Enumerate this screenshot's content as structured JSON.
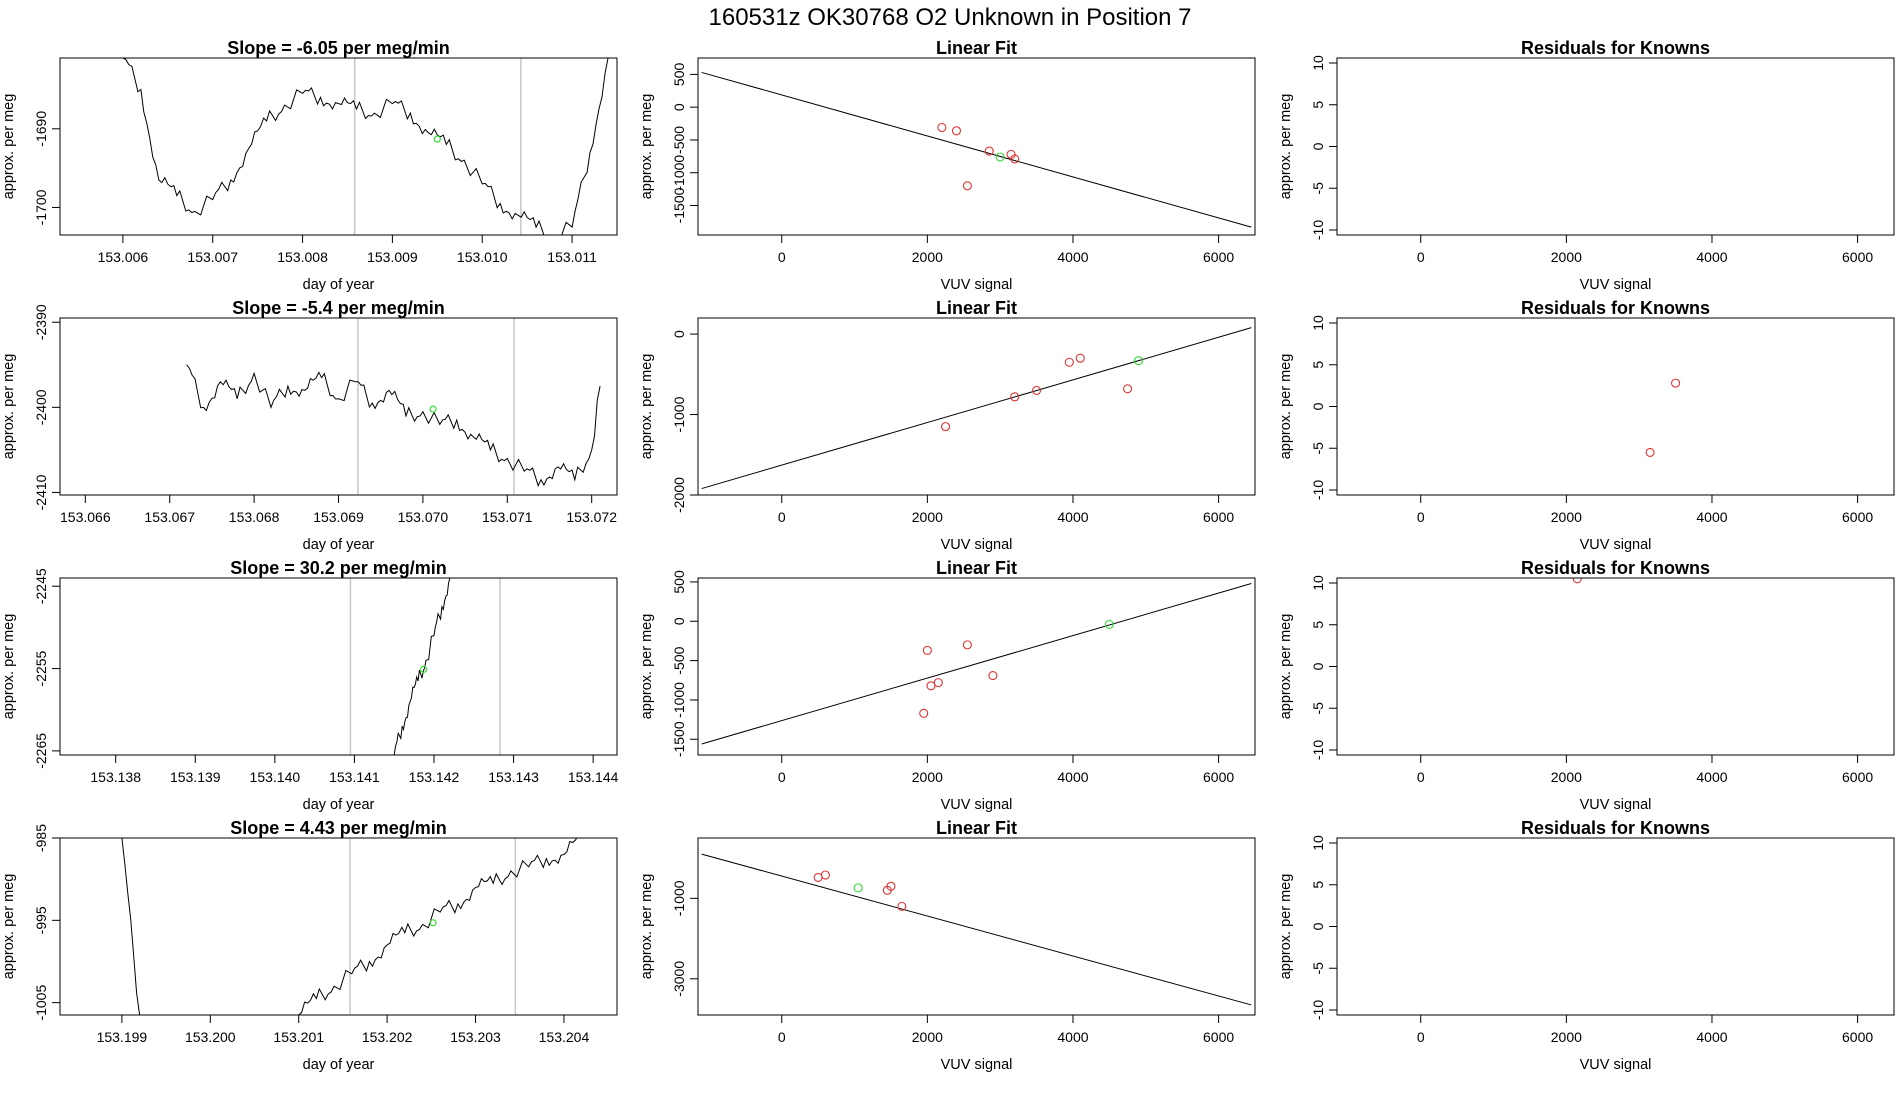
{
  "main_title": "160531z      OK30768    O2 Unknown in Position  7",
  "chart_data": [
    {
      "type": "line",
      "row": 1,
      "col": 1,
      "title": "Slope =  -6.05  per meg/min",
      "xlabel": "day of year",
      "ylabel": "approx. per meg",
      "xlim": [
        153.0053,
        153.0115
      ],
      "ylim": [
        -1703.5,
        -1681.0
      ],
      "xticks": [
        "153.006",
        "153.007",
        "153.008",
        "153.009",
        "153.010",
        "153.011"
      ],
      "yticks": [
        "-1700",
        "-1690"
      ],
      "vlines": [
        153.00858,
        153.01043
      ],
      "highlight": {
        "x": 153.0095,
        "y": -1691.3
      },
      "series": [
        {
          "name": "trace",
          "x": [
            153.006,
            153.0062,
            153.0064,
            153.0066,
            153.0068,
            153.007,
            153.0072,
            153.0074,
            153.0076,
            153.0078,
            153.008,
            153.0082,
            153.0084,
            153.0086,
            153.0088,
            153.009,
            153.0092,
            153.0094,
            153.0096,
            153.0098,
            153.01,
            153.0102,
            153.0104,
            153.0106,
            153.0108,
            153.011,
            153.0112,
            153.0114
          ],
          "y": [
            -1681.0,
            -1685.0,
            -1696.5,
            -1698.5,
            -1700.5,
            -1699.0,
            -1696.5,
            -1692.5,
            -1689.0,
            -1687.0,
            -1685.5,
            -1686.0,
            -1686.8,
            -1687.5,
            -1688.0,
            -1686.8,
            -1688.0,
            -1690.5,
            -1692.0,
            -1694.0,
            -1697.0,
            -1699.5,
            -1701.0,
            -1702.5,
            -1703.5,
            -1702.5,
            -1693.0,
            -1681.0
          ]
        }
      ]
    },
    {
      "type": "scatter",
      "row": 1,
      "col": 2,
      "title": "Linear Fit",
      "xlabel": "VUV signal",
      "ylabel": "approx. per meg",
      "xlim": [
        -1150,
        6500
      ],
      "ylim": [
        -1950,
        750
      ],
      "xticks": [
        0,
        2000,
        4000,
        6000
      ],
      "yticks": [
        -1500,
        -1000,
        -500,
        0,
        500
      ],
      "fit_line": [
        [
          -1100,
          530
        ],
        [
          6450,
          -1830
        ]
      ],
      "points_red": [
        [
          2200,
          -310
        ],
        [
          2400,
          -360
        ],
        [
          2850,
          -670
        ],
        [
          3150,
          -720
        ],
        [
          3200,
          -790
        ],
        [
          2550,
          -1200
        ]
      ],
      "points_green": [
        [
          3000,
          -760
        ]
      ]
    },
    {
      "type": "scatter",
      "row": 1,
      "col": 3,
      "title": "Residuals for Knowns",
      "xlabel": "VUV signal",
      "ylabel": "approx. per meg",
      "xlim": [
        -1150,
        6500
      ],
      "ylim": [
        -10.6,
        10.6
      ],
      "xticks": [
        0,
        2000,
        4000,
        6000
      ],
      "yticks": [
        -10,
        -5,
        0,
        5,
        10
      ],
      "points_red": []
    },
    {
      "type": "line",
      "row": 2,
      "col": 1,
      "title": "Slope =  -5.4  per meg/min",
      "xlabel": "day of year",
      "ylabel": "approx. per meg",
      "xlim": [
        153.0657,
        153.0723
      ],
      "ylim": [
        -2410.3,
        -2389.5
      ],
      "xticks": [
        "153.066",
        "153.067",
        "153.068",
        "153.069",
        "153.070",
        "153.071",
        "153.072"
      ],
      "yticks": [
        "-2410",
        "-2400",
        "-2390"
      ],
      "vlines": [
        153.06923,
        153.07108
      ],
      "highlight": {
        "x": 153.07012,
        "y": -2400.2
      },
      "series": [
        {
          "name": "trace",
          "x": [
            153.0672,
            153.0674,
            153.0676,
            153.0678,
            153.068,
            153.0682,
            153.0684,
            153.0686,
            153.0688,
            153.069,
            153.0692,
            153.0694,
            153.0696,
            153.0698,
            153.07,
            153.0702,
            153.0704,
            153.0706,
            153.0708,
            153.071,
            153.0712,
            153.0714,
            153.0716,
            153.0718,
            153.072,
            153.0721
          ],
          "y": [
            -2395.0,
            -2400.0,
            -2397.0,
            -2399.0,
            -2396.0,
            -2400.0,
            -2397.5,
            -2398.0,
            -2396.5,
            -2399.0,
            -2397.0,
            -2399.5,
            -2398.0,
            -2401.0,
            -2400.5,
            -2402.0,
            -2401.5,
            -2403.5,
            -2405.0,
            -2406.0,
            -2407.5,
            -2408.5,
            -2407.0,
            -2408.5,
            -2405.0,
            -2397.5
          ]
        }
      ]
    },
    {
      "type": "scatter",
      "row": 2,
      "col": 2,
      "title": "Linear Fit",
      "xlabel": "VUV signal",
      "ylabel": "approx. per meg",
      "xlim": [
        -1150,
        6500
      ],
      "ylim": [
        -2000,
        200
      ],
      "xticks": [
        0,
        2000,
        4000,
        6000
      ],
      "yticks": [
        -2000,
        -1000,
        0
      ],
      "fit_line": [
        [
          -1100,
          -1920
        ],
        [
          6450,
          80
        ]
      ],
      "points_red": [
        [
          2250,
          -1150
        ],
        [
          3200,
          -780
        ],
        [
          3500,
          -700
        ],
        [
          3950,
          -350
        ],
        [
          4100,
          -300
        ],
        [
          4750,
          -680
        ]
      ],
      "points_green": [
        [
          4900,
          -330
        ]
      ]
    },
    {
      "type": "scatter",
      "row": 2,
      "col": 3,
      "title": "Residuals for Knowns",
      "xlabel": "VUV signal",
      "ylabel": "approx. per meg",
      "xlim": [
        -1150,
        6500
      ],
      "ylim": [
        -10.6,
        10.6
      ],
      "xticks": [
        0,
        2000,
        4000,
        6000
      ],
      "yticks": [
        -10,
        -5,
        0,
        5,
        10
      ],
      "points_red": [
        [
          3500,
          2.8
        ],
        [
          3150,
          -5.5
        ]
      ]
    },
    {
      "type": "line",
      "row": 3,
      "col": 1,
      "title": "Slope =  30.2  per meg/min",
      "xlabel": "day of year",
      "ylabel": "approx. per meg",
      "xlim": [
        153.1373,
        153.1443
      ],
      "ylim": [
        -2265.5,
        -2244.0
      ],
      "xticks": [
        "153.138",
        "153.139",
        "153.140",
        "153.141",
        "153.142",
        "153.143",
        "153.144"
      ],
      "yticks": [
        "-2265",
        "-2255",
        "-2245"
      ],
      "vlines": [
        153.14095,
        153.14283
      ],
      "highlight": {
        "x": 153.14187,
        "y": -2255.1
      },
      "series": [
        {
          "name": "trace",
          "x": [
            153.1415,
            153.1416,
            153.1417,
            153.1418,
            153.1419,
            153.142,
            153.1421,
            153.1422
          ],
          "y": [
            -2265.5,
            -2262.0,
            -2259.0,
            -2256.5,
            -2254.0,
            -2251.0,
            -2247.5,
            -2244.0
          ]
        }
      ]
    },
    {
      "type": "scatter",
      "row": 3,
      "col": 2,
      "title": "Linear Fit",
      "xlabel": "VUV signal",
      "ylabel": "approx. per meg",
      "xlim": [
        -1150,
        6500
      ],
      "ylim": [
        -1700,
        550
      ],
      "xticks": [
        0,
        2000,
        4000,
        6000
      ],
      "yticks": [
        -1500,
        -1000,
        -500,
        0,
        500
      ],
      "fit_line": [
        [
          -1100,
          -1560
        ],
        [
          6450,
          480
        ]
      ],
      "points_red": [
        [
          2000,
          -370
        ],
        [
          2550,
          -300
        ],
        [
          2150,
          -780
        ],
        [
          2050,
          -820
        ],
        [
          2900,
          -690
        ],
        [
          1950,
          -1170
        ]
      ],
      "points_green": [
        [
          4500,
          -40
        ]
      ]
    },
    {
      "type": "scatter",
      "row": 3,
      "col": 3,
      "title": "Residuals for Knowns",
      "xlabel": "VUV signal",
      "ylabel": "approx. per meg",
      "xlim": [
        -1150,
        6500
      ],
      "ylim": [
        -10.6,
        10.6
      ],
      "xticks": [
        0,
        2000,
        4000,
        6000
      ],
      "yticks": [
        -10,
        -5,
        0,
        5,
        10
      ],
      "points_red": [
        [
          2150,
          10.5
        ]
      ]
    },
    {
      "type": "line",
      "row": 4,
      "col": 1,
      "title": "Slope =  4.43  per meg/min",
      "xlabel": "day of year",
      "ylabel": "approx. per meg",
      "xlim": [
        153.1983,
        153.2046
      ],
      "ylim": [
        -1006.5,
        -985.0
      ],
      "xticks": [
        "153.199",
        "153.200",
        "153.201",
        "153.202",
        "153.203",
        "153.204"
      ],
      "yticks": [
        "-1005",
        "-995",
        "-985"
      ],
      "vlines": [
        153.20158,
        153.20345
      ],
      "highlight": {
        "x": 153.20252,
        "y": -995.3
      },
      "series": [
        {
          "name": "trace",
          "x": [
            153.199,
            153.1992,
            153.201,
            153.2012,
            153.2014,
            153.2016,
            153.2018,
            153.202,
            153.2022,
            153.2024,
            153.2026,
            153.2028,
            153.203,
            153.2032,
            153.2034,
            153.2036,
            153.2038,
            153.204,
            153.2042
          ],
          "y": [
            -985.0,
            -1006.5,
            -1006.5,
            -1004.5,
            -1003.0,
            -1001.5,
            -1000.0,
            -998.0,
            -996.5,
            -995.5,
            -994.0,
            -993.0,
            -991.0,
            -990.5,
            -989.0,
            -988.5,
            -987.5,
            -987.0,
            -985.0
          ]
        }
      ]
    },
    {
      "type": "scatter",
      "row": 4,
      "col": 2,
      "title": "Linear Fit",
      "xlabel": "VUV signal",
      "ylabel": "approx. per meg",
      "xlim": [
        -1150,
        6500
      ],
      "ylim": [
        -3900,
        500
      ],
      "xticks": [
        0,
        2000,
        4000,
        6000
      ],
      "yticks": [
        -3000,
        -1000
      ],
      "fit_line": [
        [
          -1100,
          100
        ],
        [
          6450,
          -3650
        ]
      ],
      "points_red": [
        [
          500,
          -480
        ],
        [
          600,
          -420
        ],
        [
          1450,
          -800
        ],
        [
          1500,
          -700
        ],
        [
          1650,
          -1200
        ]
      ],
      "points_green": [
        [
          1050,
          -740
        ]
      ]
    },
    {
      "type": "scatter",
      "row": 4,
      "col": 3,
      "title": "Residuals for Knowns",
      "xlabel": "VUV signal",
      "ylabel": "approx. per meg",
      "xlim": [
        -1150,
        6500
      ],
      "ylim": [
        -10.6,
        10.6
      ],
      "xticks": [
        0,
        2000,
        4000,
        6000
      ],
      "yticks": [
        -10,
        -5,
        0,
        5,
        10
      ],
      "points_red": []
    }
  ]
}
